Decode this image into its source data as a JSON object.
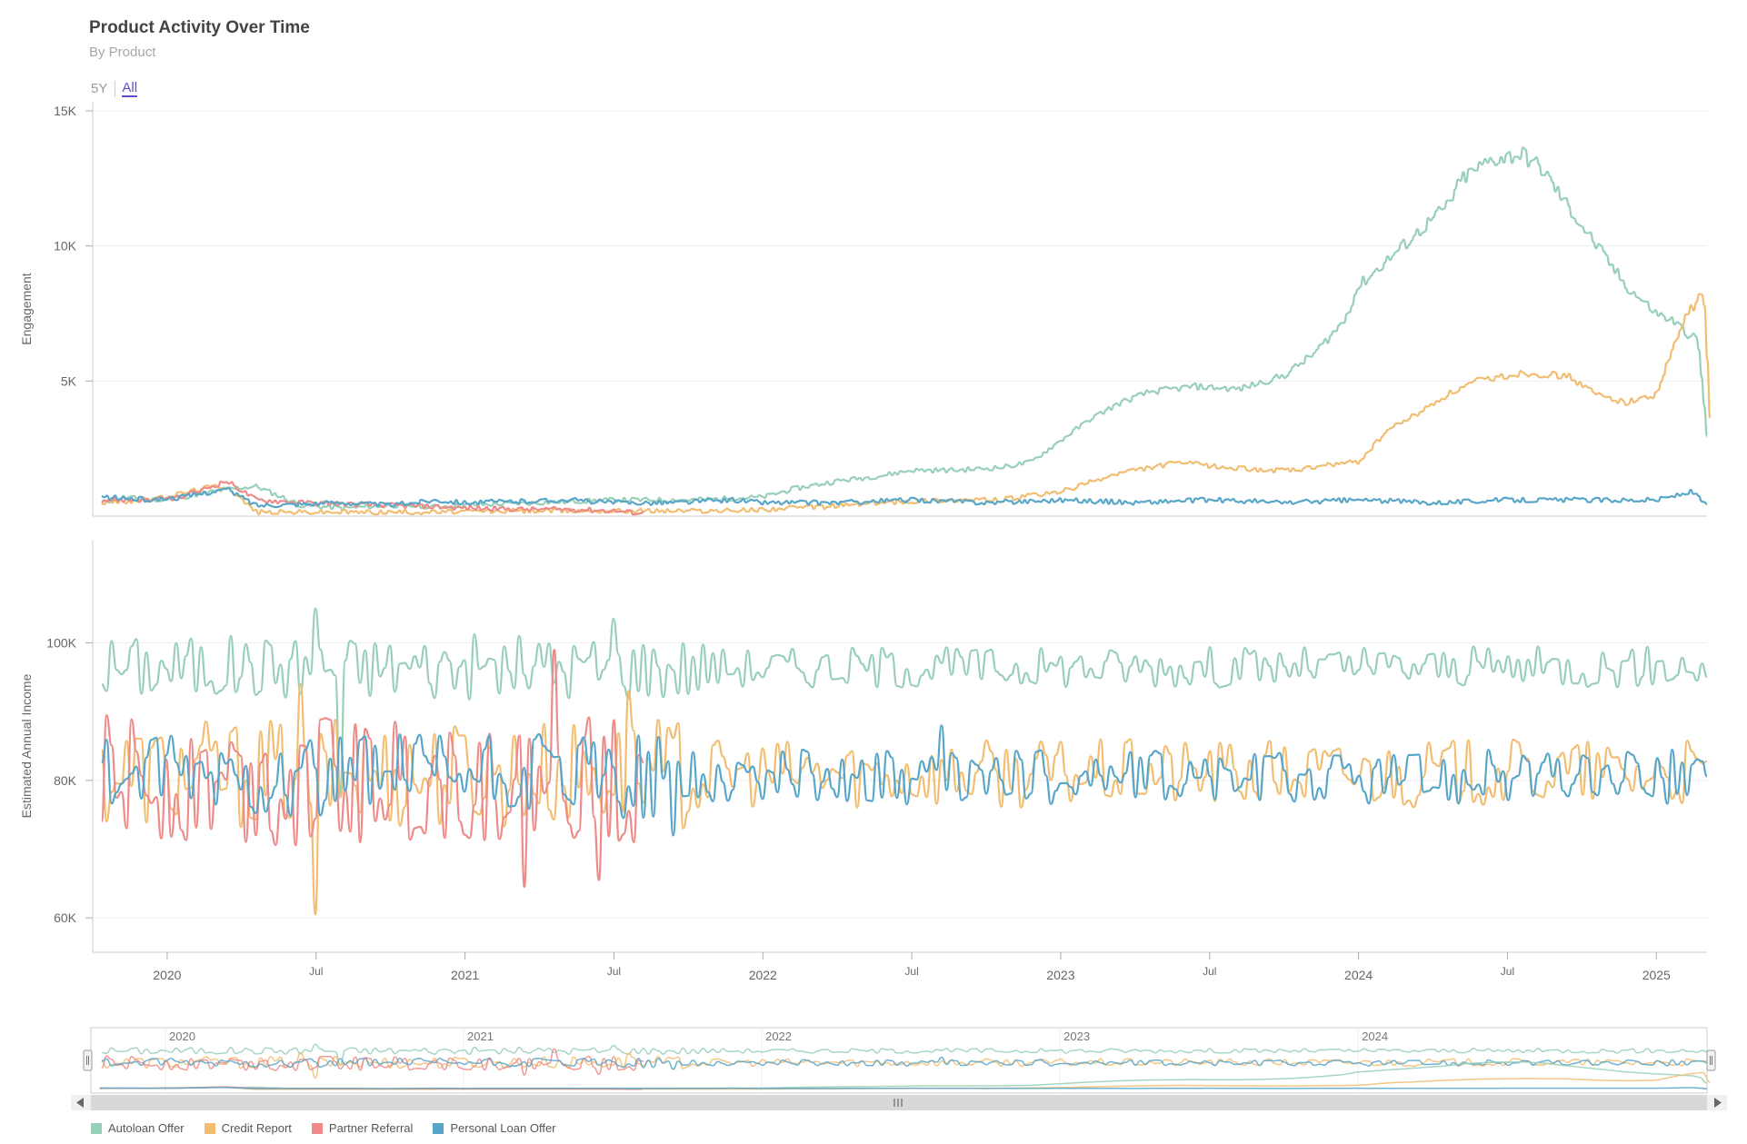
{
  "header": {
    "title": "Product Activity Over Time",
    "subtitle": "By Product"
  },
  "range_selector": {
    "buttons": [
      "5Y",
      "All"
    ],
    "active": "All"
  },
  "colors": {
    "autoloan": "#98cfb8",
    "credit": "#f2bd70",
    "partner": "#ee8a87",
    "personal": "#57a6c9"
  },
  "legend": {
    "items": [
      {
        "label": "Autoloan Offer",
        "color": "#98cfb8"
      },
      {
        "label": "Credit Report",
        "color": "#f2bd70"
      },
      {
        "label": "Partner Referral",
        "color": "#ee8a87"
      },
      {
        "label": "Personal Loan Offer",
        "color": "#57a6c9"
      }
    ]
  },
  "chart_data": [
    {
      "type": "line",
      "ylabel": "Engagement",
      "ylim": [
        0,
        15000
      ],
      "yticks": [
        5000,
        10000,
        15000
      ],
      "ytick_labels": [
        "5K",
        "10K",
        "15K"
      ],
      "x_range": [
        2019.75,
        2025.0
      ],
      "series": [
        {
          "name": "Autoloan Offer",
          "x": [
            2019.78,
            2019.85,
            2019.95,
            2020.05,
            2020.15,
            2020.2,
            2020.3,
            2020.45,
            2020.6,
            2020.75,
            2020.9,
            2021.0,
            2021.25,
            2021.5,
            2021.75,
            2022.0,
            2022.1,
            2022.25,
            2022.4,
            2022.5,
            2022.65,
            2022.8,
            2022.9,
            2023.0,
            2023.1,
            2023.2,
            2023.3,
            2023.45,
            2023.6,
            2023.75,
            2023.85,
            2023.95,
            2024.0,
            2024.1,
            2024.2,
            2024.3,
            2024.35,
            2024.45,
            2024.55,
            2024.62,
            2024.7,
            2024.8,
            2024.9,
            2025.0,
            2025.06,
            2025.1,
            2025.14,
            2025.17
          ],
          "values": [
            500,
            700,
            600,
            700,
            900,
            1000,
            1100,
            400,
            300,
            400,
            350,
            400,
            500,
            600,
            600,
            700,
            1000,
            1300,
            1500,
            1700,
            1700,
            1800,
            2000,
            2800,
            3600,
            4200,
            4600,
            4800,
            4700,
            5200,
            6000,
            7200,
            8500,
            9500,
            10500,
            11500,
            12500,
            13200,
            13400,
            12800,
            11500,
            10000,
            8500,
            7500,
            7200,
            6800,
            6500,
            3000
          ]
        },
        {
          "name": "Credit Report",
          "x": [
            2019.78,
            2019.95,
            2020.15,
            2020.2,
            2020.3,
            2020.6,
            2020.9,
            2021.2,
            2021.5,
            2021.7,
            2021.9,
            2022.0,
            2022.2,
            2022.4,
            2022.6,
            2022.8,
            2023.0,
            2023.2,
            2023.4,
            2023.55,
            2023.7,
            2023.8,
            2023.9,
            2024.0,
            2024.1,
            2024.2,
            2024.3,
            2024.4,
            2024.55,
            2024.7,
            2024.8,
            2024.9,
            2025.0,
            2025.05,
            2025.1,
            2025.14,
            2025.16,
            2025.18
          ],
          "values": [
            500,
            600,
            1100,
            1100,
            150,
            150,
            150,
            200,
            200,
            200,
            200,
            250,
            350,
            500,
            600,
            600,
            900,
            1600,
            2000,
            1800,
            1700,
            1700,
            1900,
            2000,
            3200,
            3800,
            4500,
            5000,
            5300,
            5200,
            4500,
            4200,
            4500,
            6000,
            7400,
            8000,
            8300,
            3600
          ]
        },
        {
          "name": "Partner Referral",
          "x": [
            2019.78,
            2019.95,
            2020.05,
            2020.15,
            2020.2,
            2020.3,
            2020.45,
            2020.6,
            2020.75,
            2020.9,
            2021.0,
            2021.2,
            2021.35,
            2021.5,
            2021.6
          ],
          "values": [
            600,
            600,
            700,
            1100,
            1300,
            600,
            500,
            450,
            400,
            350,
            300,
            250,
            250,
            200,
            100
          ]
        },
        {
          "name": "Personal Loan Offer",
          "x": [
            2019.78,
            2019.95,
            2020.05,
            2020.15,
            2020.2,
            2020.3,
            2020.45,
            2020.6,
            2020.75,
            2020.9,
            2021.0,
            2021.2,
            2021.35,
            2021.5,
            2021.7,
            2021.9,
            2022.0,
            2022.25,
            2022.5,
            2022.75,
            2023.0,
            2023.25,
            2023.5,
            2023.75,
            2024.0,
            2024.25,
            2024.5,
            2024.75,
            2025.0,
            2025.12,
            2025.17
          ],
          "values": [
            700,
            600,
            700,
            900,
            1000,
            400,
            450,
            500,
            400,
            600,
            500,
            550,
            600,
            500,
            500,
            600,
            500,
            500,
            600,
            500,
            600,
            500,
            600,
            500,
            600,
            500,
            600,
            600,
            600,
            900,
            400
          ]
        }
      ]
    },
    {
      "type": "line",
      "ylabel": "Estimated Annual Income",
      "ylim": [
        55000,
        115000
      ],
      "yticks": [
        60000,
        80000,
        100000
      ],
      "ytick_labels": [
        "60K",
        "80K",
        "100K"
      ],
      "x_range": [
        2019.75,
        2025.0
      ],
      "series": [
        {
          "name": "Autoloan Offer",
          "x_start": 2019.78,
          "x_end": 2025.17,
          "center": 96500,
          "amplitude": 3000,
          "spikes": [
            [
              2020.5,
              105000
            ],
            [
              2021.5,
              103500
            ],
            [
              2020.58,
              78000
            ]
          ]
        },
        {
          "name": "Credit Report",
          "x_start": 2019.78,
          "x_end": 2025.17,
          "center": 81000,
          "amplitude": 5000,
          "spikes": [
            [
              2020.5,
              60500
            ],
            [
              2020.45,
              94000
            ],
            [
              2021.55,
              93000
            ]
          ]
        },
        {
          "name": "Partner Referral",
          "x_start": 2019.78,
          "x_end": 2021.6,
          "center": 80000,
          "amplitude": 6000,
          "spikes": [
            [
              2021.3,
              99000
            ],
            [
              2021.2,
              64500
            ],
            [
              2021.45,
              65500
            ]
          ]
        },
        {
          "name": "Personal Loan Offer",
          "x_start": 2019.78,
          "x_end": 2025.17,
          "center": 80500,
          "amplitude": 4000,
          "spikes": [
            [
              2021.7,
              72000
            ],
            [
              2022.6,
              88000
            ]
          ]
        }
      ]
    }
  ],
  "x_axis": {
    "ticks": [
      2020.0,
      2020.5,
      2021.0,
      2021.5,
      2022.0,
      2022.5,
      2023.0,
      2023.5,
      2024.0,
      2024.5,
      2025.0
    ],
    "labels": [
      "2020",
      "Jul",
      "2021",
      "Jul",
      "2022",
      "Jul",
      "2023",
      "Jul",
      "2024",
      "Jul",
      "2025"
    ],
    "major": [
      true,
      false,
      true,
      false,
      true,
      false,
      true,
      false,
      true,
      false,
      true
    ]
  },
  "navigator": {
    "labels": [
      "2020",
      "2021",
      "2022",
      "2023",
      "2024"
    ],
    "ticks": [
      2020.0,
      2021.0,
      2022.0,
      2023.0,
      2024.0
    ]
  }
}
